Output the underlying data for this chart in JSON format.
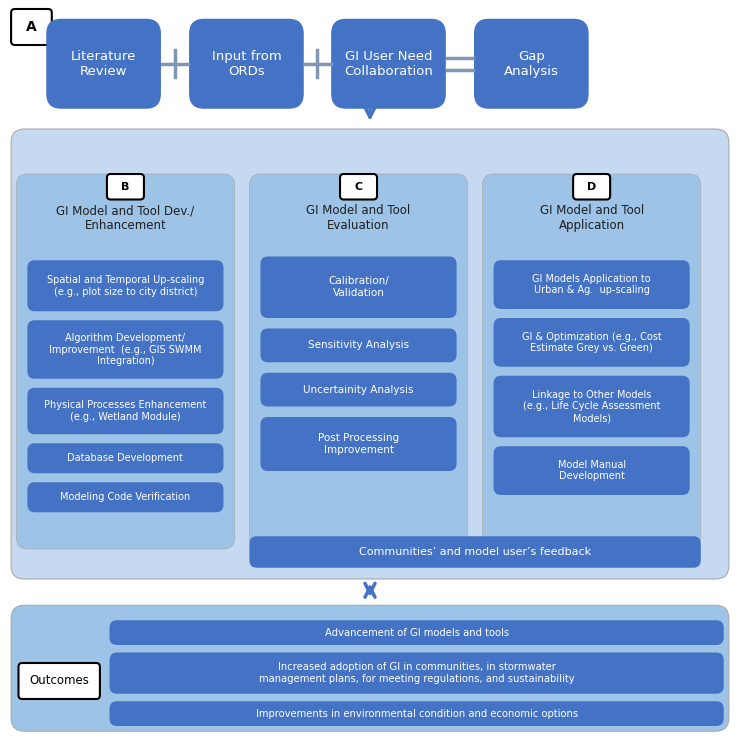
{
  "bg_color": "#ffffff",
  "top_box_color": "#4472C4",
  "top_box_text_color": "#ffffff",
  "mid_outer_bg": "#C5D9F1",
  "mid_col_bg": "#9DC3E6",
  "item_color": "#4472C4",
  "item_text": "#ffffff",
  "bottom_bg": "#9DC3E6",
  "bottom_item_color": "#4472C4",
  "bottom_item_text": "#ffffff",
  "arrow_color": "#4472C4",
  "section_title_color": "#1F1F1F",
  "top_boxes": [
    "Literature\nReview",
    "Input from\nORDs",
    "GI User Need\nCollaboration",
    "Gap\nAnalysis"
  ],
  "operators": [
    "+",
    "+",
    "="
  ],
  "section_labels": [
    "B",
    "C",
    "D"
  ],
  "section_titles": [
    "GI Model and Tool Dev./\nEnhancement",
    "GI Model and Tool\nEvaluation",
    "GI Model and Tool\nApplication"
  ],
  "col_b_items": [
    "Spatial and Temporal Up-scaling\n(e.g., plot size to city district)",
    "Algorithm Development/\nImprovement  (e.g., GIS SWMM\nIntegration)",
    "Physical Processes Enhancement\n(e.g., Wetland Module)",
    "Database Development",
    "Modeling Code Verification"
  ],
  "col_c_items": [
    "Calibration/\nValidation",
    "Sensitivity Analysis",
    "Uncertainity Analysis",
    "Post Processing\nImprovement"
  ],
  "col_d_items": [
    "GI Models Application to\nUrban & Ag.  up-scaling",
    "GI & Optimization (e.g., Cost\nEstimate Grey vs. Green)",
    "Linkage to Other Models\n(e.g., Life Cycle Assessment\nModels)",
    "Model Manual\nDevelopment"
  ],
  "feedback_text": "Communities’ and model user’s feedback",
  "outcomes_label": "Outcomes",
  "outcome_items": [
    "Advancement of GI models and tools",
    "Increased adoption of GI in communities, in stormwater\nmanagement plans, for meeting regulations, and sustainability",
    "Improvements in environmental condition and economic options"
  ]
}
